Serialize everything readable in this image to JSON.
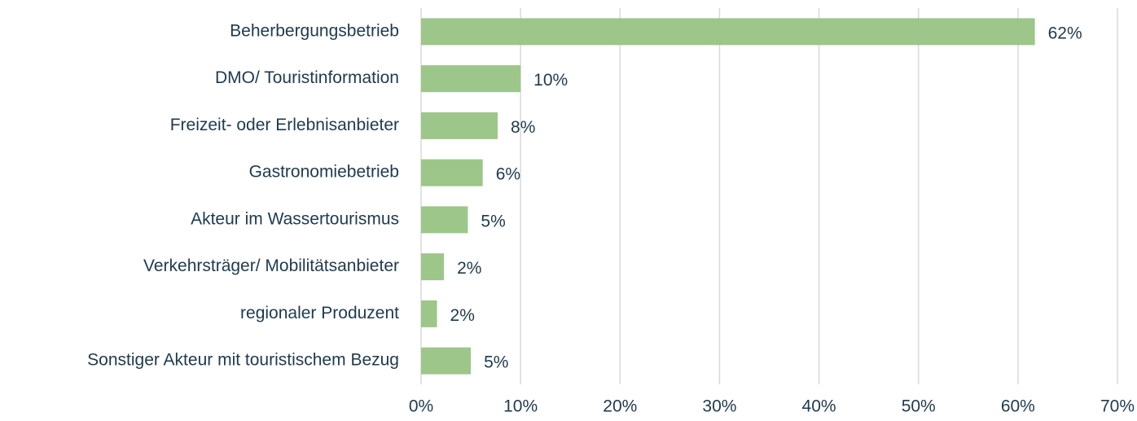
{
  "chart_data": {
    "type": "hbar",
    "categories": [
      "Beherbergungsbetrieb",
      "DMO/ Touristinformation",
      "Freizeit- oder Erlebnisanbieter",
      "Gastronomiebetrieb",
      "Akteur im Wassertourismus",
      "Verkehrsträger/ Mobilitätsanbieter",
      "regionaler Produzent",
      "Sonstiger Akteur mit touristischem Bezug"
    ],
    "values": [
      61.7,
      10.0,
      7.7,
      6.2,
      4.7,
      2.3,
      1.6,
      5.0
    ],
    "value_labels": [
      "62%",
      "10%",
      "8%",
      "6%",
      "5%",
      "2%",
      "2%",
      "5%"
    ],
    "color": "#9dc68a",
    "xlim": [
      0,
      70
    ],
    "xticks": [
      {
        "value": 0,
        "label": "0%"
      },
      {
        "value": 10,
        "label": "10%"
      },
      {
        "value": 20,
        "label": "20%"
      },
      {
        "value": 30,
        "label": "30%"
      },
      {
        "value": 40,
        "label": "40%"
      },
      {
        "value": 50,
        "label": "50%"
      },
      {
        "value": 60,
        "label": "60%"
      },
      {
        "value": 70,
        "label": "70%"
      }
    ],
    "grid": true
  }
}
